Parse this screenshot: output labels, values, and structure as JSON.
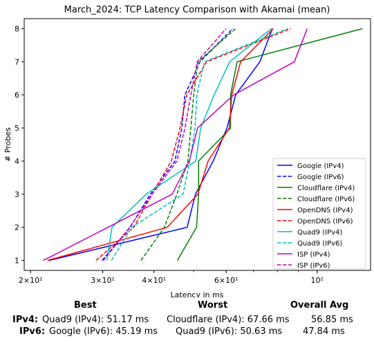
{
  "chart_data": {
    "type": "line",
    "title": "March_2024: TCP Latency Comparison with Akamai (mean)",
    "xlabel": "Latency in ms",
    "ylabel": "# Probes",
    "xscale": "log",
    "xlim": [
      19.3,
      135
    ],
    "ylim": [
      0.7,
      8.3
    ],
    "x_ticks": [
      {
        "value": 20,
        "label": "2×10¹"
      },
      {
        "value": 30,
        "label": "3×10¹"
      },
      {
        "value": 40,
        "label": "4×10¹"
      },
      {
        "value": 60,
        "label": "6×10¹"
      },
      {
        "value": 100,
        "label": "10²"
      }
    ],
    "y_ticks": [
      1,
      2,
      3,
      4,
      5,
      6,
      7,
      8
    ],
    "legend_position": "lower-right",
    "series": [
      {
        "name": "Google (IPv4)",
        "color": "#0000ff",
        "dash": "solid",
        "x": [
          22.2,
          48.2,
          50.5,
          55.8,
          60.3,
          63.3,
          72.5,
          77.8
        ],
        "y": [
          1,
          2,
          3,
          4,
          5,
          6,
          7,
          8
        ]
      },
      {
        "name": "Google (IPv6)",
        "color": "#0000ff",
        "dash": "dashed",
        "x": [
          29.9,
          35.0,
          39.2,
          45.0,
          46.8,
          47.6,
          51.8,
          62.3
        ],
        "y": [
          1,
          2,
          3,
          4,
          5,
          6,
          7,
          8
        ]
      },
      {
        "name": "Cloudflare (IPv4)",
        "color": "#008000",
        "dash": "solid",
        "x": [
          45.6,
          50.8,
          51.4,
          51.4,
          61.5,
          61.5,
          63.8,
          129
        ],
        "y": [
          1,
          2,
          3,
          4,
          5,
          6,
          7,
          8
        ]
      },
      {
        "name": "Cloudflare (IPv6)",
        "color": "#008000",
        "dash": "dashed",
        "x": [
          37.2,
          42.4,
          45.5,
          48.4,
          49.2,
          50.0,
          51.2,
          63.3
        ],
        "y": [
          1,
          2,
          3,
          4,
          5,
          6,
          7,
          8
        ]
      },
      {
        "name": "OpenDNS (IPv4)",
        "color": "#ff0000",
        "dash": "solid",
        "x": [
          22.0,
          43.1,
          51.2,
          54.2,
          61.1,
          61.9,
          65.1,
          78.2
        ],
        "y": [
          1,
          2,
          3,
          4,
          5,
          6,
          7,
          8
        ]
      },
      {
        "name": "OpenDNS (IPv6)",
        "color": "#ff0000",
        "dash": "dashed",
        "x": [
          28.9,
          35.7,
          39.6,
          44.1,
          46.3,
          48.1,
          53.8,
          86.2
        ],
        "y": [
          1,
          2,
          3,
          4,
          5,
          6,
          7,
          8
        ]
      },
      {
        "name": "Quad9 (IPv4)",
        "color": "#00bfbf",
        "dash": "solid",
        "x": [
          30.7,
          31.6,
          38.3,
          50.6,
          52.0,
          56.1,
          61.2,
          77.4
        ],
        "y": [
          1,
          2,
          3,
          4,
          5,
          6,
          7,
          8
        ]
      },
      {
        "name": "Quad9 (IPv6)",
        "color": "#00bfbf",
        "dash": "dashed",
        "x": [
          31.5,
          35.3,
          47.1,
          48.9,
          50.4,
          50.9,
          53.1,
          84.8
        ],
        "y": [
          1,
          2,
          3,
          4,
          5,
          6,
          7,
          8
        ]
      },
      {
        "name": "ISP (IPv4)",
        "color": "#bf00bf",
        "dash": "solid",
        "x": [
          21.5,
          30.9,
          44.3,
          48.8,
          51.1,
          62.6,
          88.0,
          94.6
        ],
        "y": [
          1,
          2,
          3,
          4,
          5,
          6,
          7,
          8
        ]
      },
      {
        "name": "ISP (IPv6)",
        "color": "#bf00bf",
        "dash": "dashed",
        "x": [
          30.1,
          34.9,
          39.6,
          45.5,
          47.6,
          49.2,
          51.0,
          60.0
        ],
        "y": [
          1,
          2,
          3,
          4,
          5,
          6,
          7,
          8
        ]
      }
    ]
  },
  "summary": {
    "headers": {
      "best": "Best",
      "worst": "Worst",
      "avg": "Overall Avg"
    },
    "rows": [
      {
        "label": "IPv4:",
        "best": "Quad9 (IPv4): 51.17 ms",
        "worst": "Cloudflare (IPv4): 67.66 ms",
        "avg": "56.85 ms"
      },
      {
        "label": "IPv6:",
        "best": "Google (IPv6): 45.19 ms",
        "worst": "Quad9 (IPv6): 50.63 ms",
        "avg": "47.84 ms"
      }
    ]
  }
}
